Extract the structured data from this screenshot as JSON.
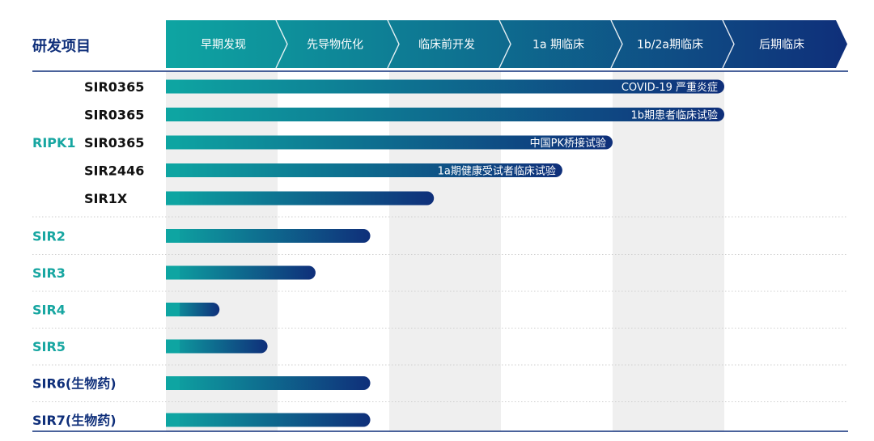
{
  "header": {
    "title": "研发项目",
    "phases": [
      "早期发现",
      "先导物优化",
      "临床前开发",
      "1a 期临床",
      "1b/2a期临床",
      "后期临床"
    ]
  },
  "colors": {
    "teal": "#0ea5a2",
    "navy": "#0f2f7a",
    "band": "#efefef",
    "row_divider": "#cfcfcf"
  },
  "pipeline": [
    {
      "group": "RIPK1",
      "group_color": "#17a6a1",
      "items": [
        {
          "name": "SIR0365",
          "progress_phases": 5.0,
          "note": "COVID-19 严重炎症"
        },
        {
          "name": "SIR0365",
          "progress_phases": 5.0,
          "note": "1b期患者临床试验"
        },
        {
          "name": "SIR0365",
          "progress_phases": 4.0,
          "note": "中国PK桥接试验"
        },
        {
          "name": "SIR2446",
          "progress_phases": 3.55,
          "note": "1a期健康受试者临床试验"
        },
        {
          "name": "SIR1X",
          "progress_phases": 2.4,
          "note": ""
        }
      ]
    },
    {
      "group": "SIR2",
      "group_color": "#17a6a1",
      "items": [
        {
          "name": "",
          "progress_phases": 1.83,
          "note": ""
        }
      ]
    },
    {
      "group": "SIR3",
      "group_color": "#17a6a1",
      "items": [
        {
          "name": "",
          "progress_phases": 1.34,
          "note": ""
        }
      ]
    },
    {
      "group": "SIR4",
      "group_color": "#17a6a1",
      "items": [
        {
          "name": "",
          "progress_phases": 0.48,
          "note": ""
        }
      ]
    },
    {
      "group": "SIR5",
      "group_color": "#17a6a1",
      "items": [
        {
          "name": "",
          "progress_phases": 0.91,
          "note": ""
        }
      ]
    },
    {
      "group": "SIR6(生物药)",
      "group_color": "#0f2f7a",
      "items": [
        {
          "name": "",
          "progress_phases": 1.83,
          "note": ""
        }
      ]
    },
    {
      "group": "SIR7(生物药)",
      "group_color": "#0f2f7a",
      "items": [
        {
          "name": "",
          "progress_phases": 1.83,
          "note": ""
        }
      ]
    }
  ]
}
